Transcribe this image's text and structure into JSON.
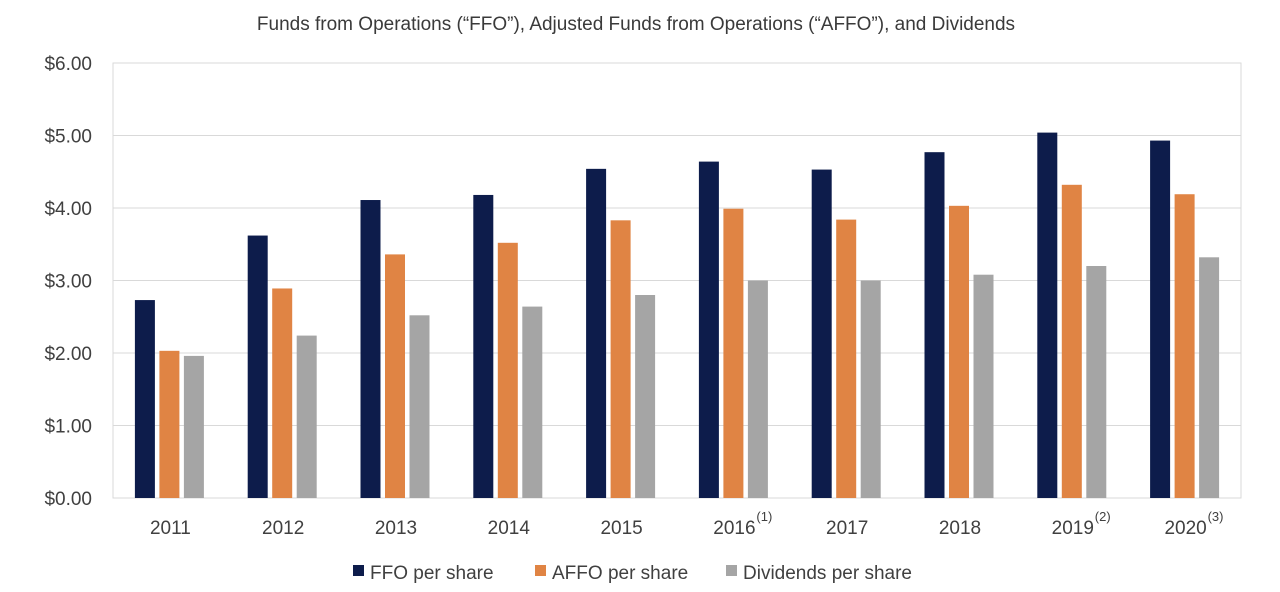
{
  "chart_data": {
    "type": "bar",
    "title": "Funds from Operations (“FFO”), Adjusted Funds from Operations (“AFFO”), and Dividends",
    "xlabel": "",
    "ylabel": "",
    "ylim": [
      0,
      6
    ],
    "yticks": [
      "$0.00",
      "$1.00",
      "$2.00",
      "$3.00",
      "$4.00",
      "$5.00",
      "$6.00"
    ],
    "grid": true,
    "legend_position": "bottom",
    "categories": [
      "2011",
      "2012",
      "2013",
      "2014",
      "2015",
      "2016",
      "2017",
      "2018",
      "2019",
      "2020"
    ],
    "footnotes": [
      "",
      "",
      "",
      "",
      "",
      "(1)",
      "",
      "",
      "(2)",
      "(3)"
    ],
    "series": [
      {
        "name": "FFO per share",
        "color": "#0d1c4b",
        "values": [
          2.73,
          3.62,
          4.11,
          4.18,
          4.54,
          4.64,
          4.53,
          4.77,
          5.04,
          4.93
        ]
      },
      {
        "name": "AFFO per share",
        "color": "#e08444",
        "values": [
          2.03,
          2.89,
          3.36,
          3.52,
          3.83,
          3.99,
          3.84,
          4.03,
          4.32,
          4.19
        ]
      },
      {
        "name": "Dividends per share",
        "color": "#a5a5a5",
        "values": [
          1.96,
          2.24,
          2.52,
          2.64,
          2.8,
          3.0,
          3.0,
          3.08,
          3.2,
          3.32
        ]
      }
    ]
  }
}
